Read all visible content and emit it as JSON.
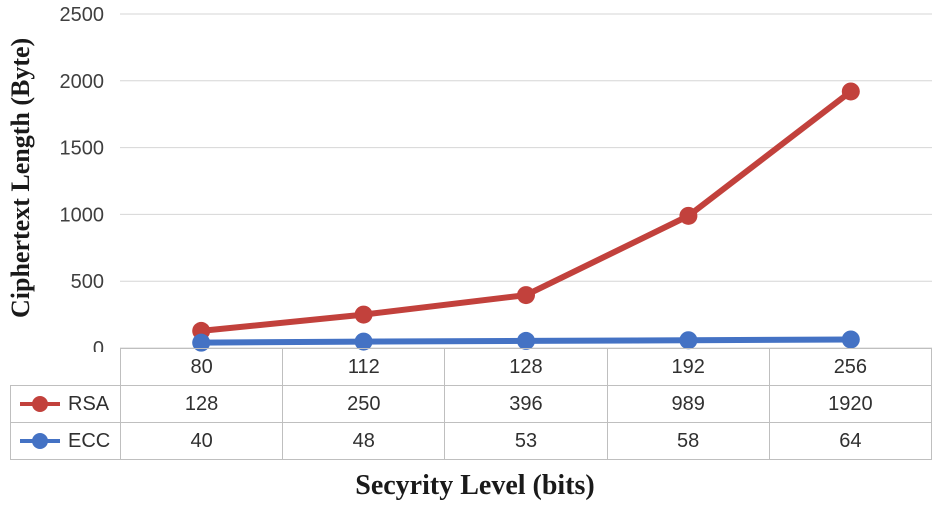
{
  "chart_data": {
    "type": "line",
    "title": "",
    "xlabel": "Secyrity Level (bits)",
    "ylabel": "Ciphertext Length (Byte)",
    "categories": [
      "80",
      "112",
      "128",
      "192",
      "256"
    ],
    "series": [
      {
        "name": "RSA",
        "color": "#c2413c",
        "values": [
          128,
          250,
          396,
          989,
          1920
        ]
      },
      {
        "name": "ECC",
        "color": "#4472c4",
        "values": [
          40,
          48,
          53,
          58,
          64
        ]
      }
    ],
    "ylim": [
      0,
      2500
    ],
    "yticks": [
      0,
      500,
      1000,
      1500,
      2000,
      2500
    ],
    "grid": true,
    "grid_color": "#d6d6d6",
    "legend_position": "table-left",
    "marker": "circle"
  }
}
